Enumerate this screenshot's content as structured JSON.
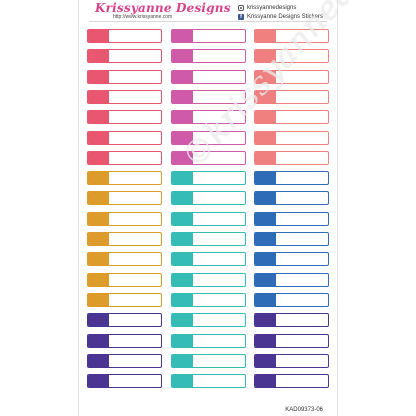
{
  "header": {
    "brand": "Krissyanne Designs",
    "url": "http://www.krissyanne.com",
    "instagram_handle": "krissyannedesigns",
    "facebook_page": "Krissyanne Designs Stickers"
  },
  "watermark": "©krissyannedesigns",
  "product_code": "KAD09373-06",
  "icons": {
    "instagram": "instagram-icon",
    "facebook": "facebook-icon"
  },
  "grid": {
    "rows": 18,
    "columns": [
      {
        "name": "column-1",
        "colors": [
          "#e8566f",
          "#e8566f",
          "#e8566f",
          "#e8566f",
          "#e8566f",
          "#e8566f",
          "#e8566f",
          "#dc9b2a",
          "#dc9b2a",
          "#dc9b2a",
          "#dc9b2a",
          "#dc9b2a",
          "#dc9b2a",
          "#dc9b2a",
          "#4a3592",
          "#4a3592",
          "#4a3592",
          "#4a3592"
        ]
      },
      {
        "name": "column-2",
        "colors": [
          "#cf5aa9",
          "#cf5aa9",
          "#cf5aa9",
          "#cf5aa9",
          "#cf5aa9",
          "#cf5aa9",
          "#cf5aa9",
          "#35bcb6",
          "#35bcb6",
          "#35bcb6",
          "#35bcb6",
          "#35bcb6",
          "#35bcb6",
          "#35bcb6",
          "#35bcb6",
          "#35bcb6",
          "#35bcb6",
          "#35bcb6"
        ]
      },
      {
        "name": "column-3",
        "colors": [
          "#f08080",
          "#f08080",
          "#f08080",
          "#f08080",
          "#f08080",
          "#f08080",
          "#f08080",
          "#2e6cb8",
          "#2e6cb8",
          "#2e6cb8",
          "#2e6cb8",
          "#2e6cb8",
          "#2e6cb8",
          "#2e6cb8",
          "#4a3592",
          "#4a3592",
          "#4a3592",
          "#4a3592"
        ]
      }
    ]
  }
}
